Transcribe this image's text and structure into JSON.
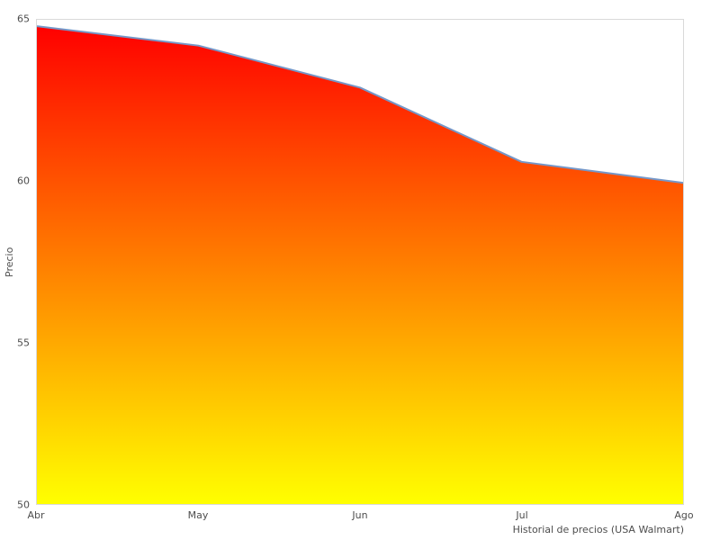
{
  "figure": {
    "background": "#ffffff",
    "spine_color": "#d9d9d9",
    "text_color": "#4d4d4d"
  },
  "chart_data": {
    "type": "area",
    "title": "",
    "xlabel": "Historial de precios (USA Walmart)",
    "ylabel": "Precio",
    "categories": [
      "Abr",
      "May",
      "Jun",
      "Jul",
      "Ago"
    ],
    "values": [
      64.8,
      64.2,
      62.9,
      60.6,
      59.95
    ],
    "series_name": "Precio",
    "ylim": [
      50,
      65
    ],
    "yticks": [
      65,
      60,
      55,
      50
    ],
    "grid": false,
    "legend": false,
    "line_color": "#7597c8",
    "line_width": 2,
    "fill_gradient_top": "#ff0000",
    "fill_gradient_bottom": "#ffff00"
  }
}
